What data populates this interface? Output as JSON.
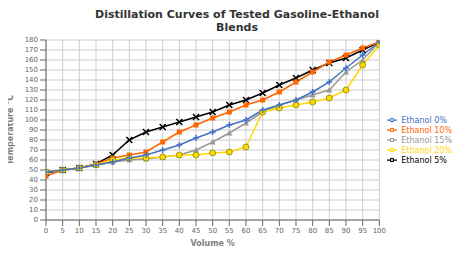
{
  "chart_data": {
    "type": "line",
    "title": "Distillation Curves of Tested Gasoline-Ethanol\nBlends",
    "x_label": "Volume %",
    "y_label": "Temperature °C",
    "x": [
      0,
      5,
      10,
      15,
      20,
      25,
      30,
      35,
      40,
      45,
      50,
      55,
      60,
      65,
      70,
      75,
      80,
      85,
      90,
      95,
      100
    ],
    "xlim": [
      0,
      100
    ],
    "ylim": [
      0,
      180
    ],
    "xticks": [
      0,
      5,
      10,
      15,
      20,
      25,
      30,
      35,
      40,
      45,
      50,
      55,
      60,
      65,
      70,
      75,
      80,
      85,
      90,
      95,
      100
    ],
    "yticks": [
      0,
      10,
      20,
      30,
      40,
      50,
      60,
      70,
      80,
      90,
      100,
      110,
      120,
      130,
      140,
      150,
      160,
      170,
      180
    ],
    "grid": true,
    "legend": "right",
    "series": [
      {
        "name": "Ethanol 5%",
        "color": "#000000",
        "marker": "x",
        "values": [
          47,
          50,
          52,
          56,
          65,
          80,
          88,
          93,
          98,
          103,
          108,
          115,
          120,
          127,
          135,
          142,
          150,
          157,
          162,
          170,
          178
        ]
      },
      {
        "name": "Ethanol 10%",
        "color": "#FF6600",
        "marker": "square",
        "values": [
          44,
          50,
          52,
          56,
          62,
          65,
          68,
          78,
          88,
          95,
          102,
          108,
          115,
          120,
          128,
          138,
          148,
          158,
          165,
          172,
          178
        ]
      },
      {
        "name": "Ethanol 15%",
        "color": "#999999",
        "marker": "triangle",
        "values": [
          48,
          50,
          52,
          55,
          58,
          60,
          61,
          63,
          65,
          70,
          78,
          87,
          97,
          108,
          115,
          120,
          125,
          130,
          148,
          160,
          178
        ]
      },
      {
        "name": "Ethanol 20%",
        "color": "#FFD700",
        "marker": "circle",
        "values": [
          48,
          50,
          52,
          55,
          60,
          62,
          62,
          63,
          65,
          65,
          67,
          68,
          73,
          108,
          112,
          115,
          118,
          122,
          130,
          155,
          175
        ]
      },
      {
        "name": "Ethanol 0%",
        "color": "#4472C4",
        "marker": "plus",
        "values": [
          48,
          50,
          52,
          55,
          58,
          62,
          65,
          70,
          75,
          82,
          88,
          95,
          100,
          110,
          115,
          120,
          128,
          138,
          152,
          165,
          178
        ]
      }
    ]
  }
}
